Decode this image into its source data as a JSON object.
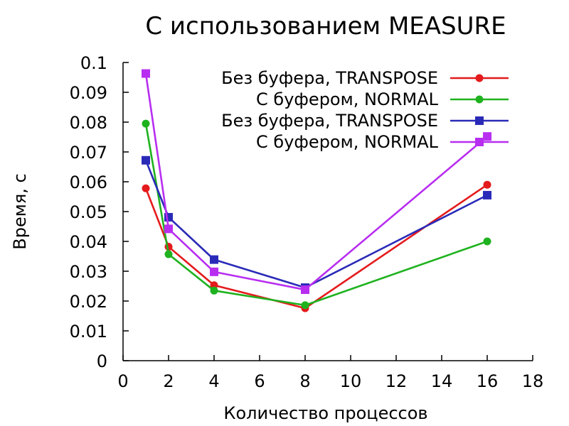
{
  "chart_data": {
    "type": "line",
    "title": "С использованием MEASURE",
    "xlabel": "Количество процессов",
    "ylabel": "Время, с",
    "xlim": [
      0,
      18
    ],
    "ylim": [
      0,
      0.1
    ],
    "x_ticks": [
      "0",
      "2",
      "4",
      "6",
      "8",
      "10",
      "12",
      "14",
      "16",
      "18"
    ],
    "y_ticks": [
      "0",
      "0.01",
      "0.02",
      "0.03",
      "0.04",
      "0.05",
      "0.06",
      "0.07",
      "0.08",
      "0.09",
      "0.1"
    ],
    "grid": false,
    "legend_position": "top-right",
    "series": [
      {
        "name": "Без буфера, TRANSPOSE",
        "color": "#e41a1c",
        "marker": "circle",
        "x": [
          1,
          2,
          4,
          8,
          16
        ],
        "y": [
          0.0578,
          0.0382,
          0.0253,
          0.0176,
          0.059
        ]
      },
      {
        "name": "С буфером, NORMAL",
        "color": "#1fb21f",
        "marker": "circle",
        "x": [
          1,
          2,
          4,
          8,
          16
        ],
        "y": [
          0.0795,
          0.0357,
          0.0235,
          0.0186,
          0.04
        ]
      },
      {
        "name": "Без буфера, TRANSPOSE",
        "color": "#2a2ab8",
        "marker": "square",
        "x": [
          1,
          2,
          4,
          8,
          16
        ],
        "y": [
          0.0672,
          0.0481,
          0.0339,
          0.0245,
          0.0555
        ]
      },
      {
        "name": "С буфером, NORMAL",
        "color": "#b82ef0",
        "marker": "square",
        "x": [
          1,
          2,
          4,
          8,
          16
        ],
        "y": [
          0.0963,
          0.0442,
          0.0298,
          0.0238,
          0.0752
        ]
      }
    ]
  }
}
